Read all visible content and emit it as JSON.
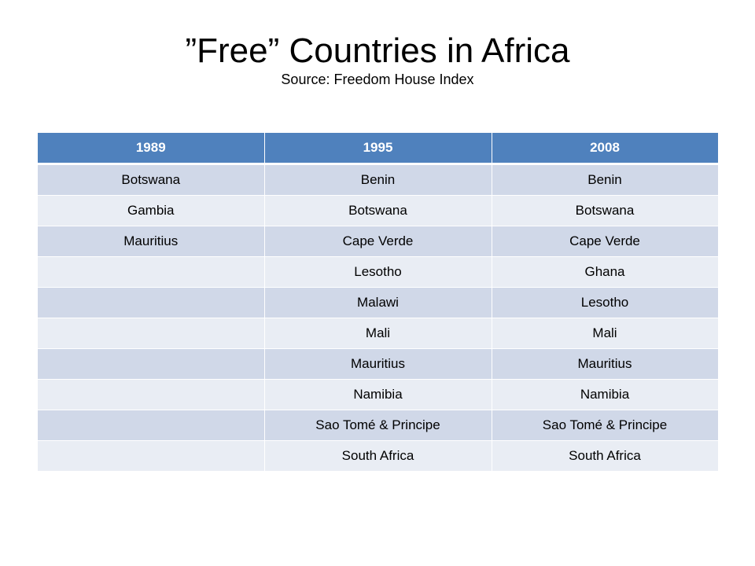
{
  "title": {
    "main": "”Free” Countries in Africa",
    "subtitle": "Source: Freedom House Index"
  },
  "table": {
    "headers": [
      "1989",
      "1995",
      "2008"
    ],
    "rows": [
      [
        "Botswana",
        "Benin",
        "Benin"
      ],
      [
        "Gambia",
        "Botswana",
        "Botswana"
      ],
      [
        "Mauritius",
        "Cape Verde",
        "Cape Verde"
      ],
      [
        "",
        "Lesotho",
        "Ghana"
      ],
      [
        "",
        "Malawi",
        "Lesotho"
      ],
      [
        "",
        "Mali",
        "Mali"
      ],
      [
        "",
        "Mauritius",
        "Mauritius"
      ],
      [
        "",
        "Namibia",
        "Namibia"
      ],
      [
        "",
        "Sao Tomé & Principe",
        "Sao Tomé & Principe"
      ],
      [
        "",
        "South Africa",
        "South Africa"
      ]
    ],
    "colors": {
      "header_bg": "#4f81bd",
      "row_odd_bg": "#d0d8e8",
      "row_even_bg": "#e9edf4"
    }
  }
}
